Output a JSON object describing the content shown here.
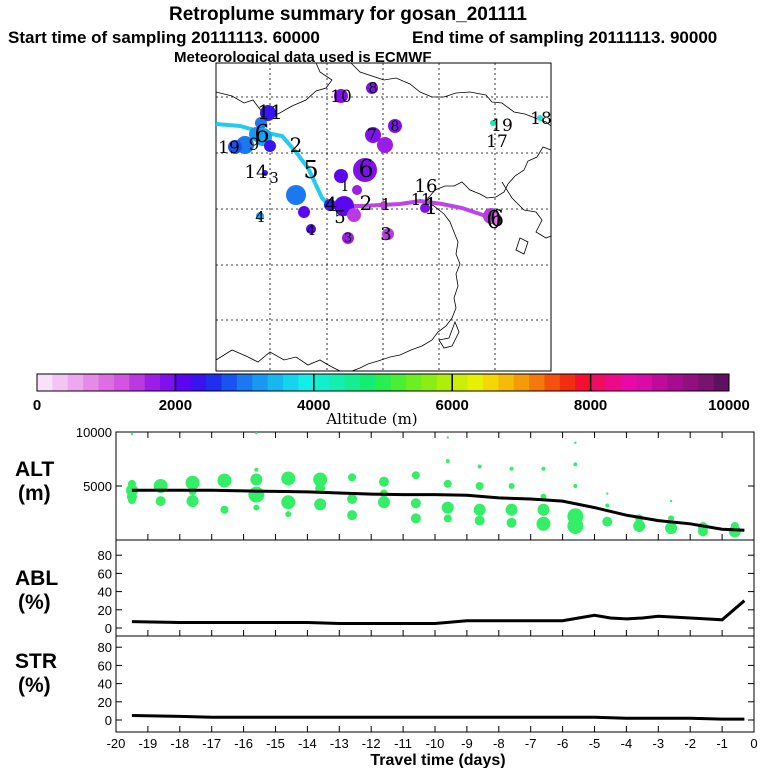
{
  "header": {
    "title": "Retroplume summary for gosan_201111",
    "start": "Start time of sampling 20111113. 60000",
    "end": "End time of sampling 20111113. 90000",
    "met": "Meteorological data used is ECMWF"
  },
  "colors": {
    "trajectory": "#22ccee",
    "trajectory_late": "#bb44ee",
    "line": "#000000",
    "points": "#33ee66"
  },
  "colorbar": {
    "label": "Altitude (m)",
    "ticks": [
      "0",
      "2000",
      "4000",
      "6000",
      "8000",
      "10000"
    ],
    "swatches": [
      "#fbe0fb",
      "#f4c4f4",
      "#eea8f0",
      "#e68ae8",
      "#dd6ee2",
      "#d354e0",
      "#bb3ae0",
      "#9b1ee6",
      "#8010ee",
      "#5a06f0",
      "#3a14f0",
      "#1e30ee",
      "#1a54f0",
      "#1a78f0",
      "#1898f0",
      "#16b8f0",
      "#14d4f0",
      "#14eee8",
      "#14eed0",
      "#14eeb0",
      "#14ee90",
      "#14ee70",
      "#28ee50",
      "#4aee34",
      "#6cee20",
      "#8cee10",
      "#aeee08",
      "#ccee04",
      "#e8ee04",
      "#f4d804",
      "#f4bc06",
      "#f49c08",
      "#f4780c",
      "#f4500e",
      "#f42c12",
      "#f40e30",
      "#f00c60",
      "#ec0a88",
      "#e80aa8",
      "#d80aa8",
      "#c00a9c",
      "#a80a90",
      "#901080",
      "#781470",
      "#601060"
    ]
  },
  "map": {
    "label_numbers": [
      "0",
      "1",
      "2",
      "3",
      "4",
      "5",
      "6",
      "7",
      "8",
      "9",
      "10",
      "11",
      "13",
      "14",
      "15",
      "16",
      "17",
      "18",
      "19"
    ]
  },
  "panels": {
    "alt": {
      "label_1": "ALT",
      "label_2": "(m)",
      "ticks": [
        "10000",
        "5000"
      ]
    },
    "abl": {
      "label_1": "ABL",
      "label_2": "(%)",
      "ticks": [
        "80",
        "60",
        "40",
        "20",
        "0"
      ]
    },
    "str": {
      "label_1": "STR",
      "label_2": "(%)",
      "ticks": [
        "80",
        "60",
        "40",
        "20",
        "0"
      ]
    }
  },
  "xaxis": {
    "label": "Travel time (days)",
    "ticks": [
      "-20",
      "-19",
      "-18",
      "-17",
      "-16",
      "-15",
      "-14",
      "-13",
      "-12",
      "-11",
      "-10",
      "-9",
      "-8",
      "-7",
      "-6",
      "-5",
      "-4",
      "-3",
      "-2",
      "-1",
      "0"
    ]
  },
  "chart_data": [
    {
      "type": "line",
      "title": "ALT",
      "xlabel": "Travel time (days)",
      "ylabel": "ALT (m)",
      "xlim": [
        -20,
        0
      ],
      "ylim": [
        0,
        10000
      ],
      "x": [
        -19.5,
        -18,
        -17,
        -16,
        -15,
        -14,
        -13,
        -12,
        -11,
        -10,
        -9,
        -8,
        -7,
        -6,
        -5,
        -4,
        -3,
        -2,
        -1,
        -0.3
      ],
      "values": [
        4600,
        4600,
        4600,
        4550,
        4500,
        4450,
        4350,
        4250,
        4200,
        4200,
        4150,
        3900,
        3800,
        3600,
        3000,
        2300,
        1800,
        1500,
        1000,
        900
      ]
    },
    {
      "type": "line",
      "title": "ABL",
      "xlabel": "Travel time (days)",
      "ylabel": "ABL (%)",
      "xlim": [
        -20,
        0
      ],
      "ylim": [
        0,
        100
      ],
      "x": [
        -19.5,
        -18,
        -17,
        -16,
        -15,
        -14,
        -13,
        -12,
        -11,
        -10,
        -9,
        -8,
        -7,
        -6,
        -5.5,
        -5,
        -4.5,
        -4,
        -3.5,
        -3,
        -2.5,
        -2,
        -1.5,
        -1,
        -0.3
      ],
      "values": [
        7,
        6,
        6,
        6,
        6,
        6,
        5,
        5,
        5,
        5,
        8,
        8,
        8,
        8,
        11,
        14,
        11,
        10,
        11,
        13,
        12,
        11,
        10,
        9,
        30
      ]
    },
    {
      "type": "line",
      "title": "STR",
      "xlabel": "Travel time (days)",
      "ylabel": "STR (%)",
      "xlim": [
        -20,
        0
      ],
      "ylim": [
        0,
        100
      ],
      "x": [
        -19.5,
        -18,
        -17,
        -16,
        -15,
        -14,
        -13,
        -12,
        -11,
        -10,
        -9,
        -8,
        -7,
        -6,
        -5,
        -4,
        -3,
        -2,
        -1,
        -0.3
      ],
      "values": [
        5,
        4,
        3,
        3,
        3,
        3,
        3,
        3,
        3,
        3,
        3,
        3,
        3,
        3,
        3,
        2,
        2,
        2,
        1,
        1
      ]
    }
  ]
}
